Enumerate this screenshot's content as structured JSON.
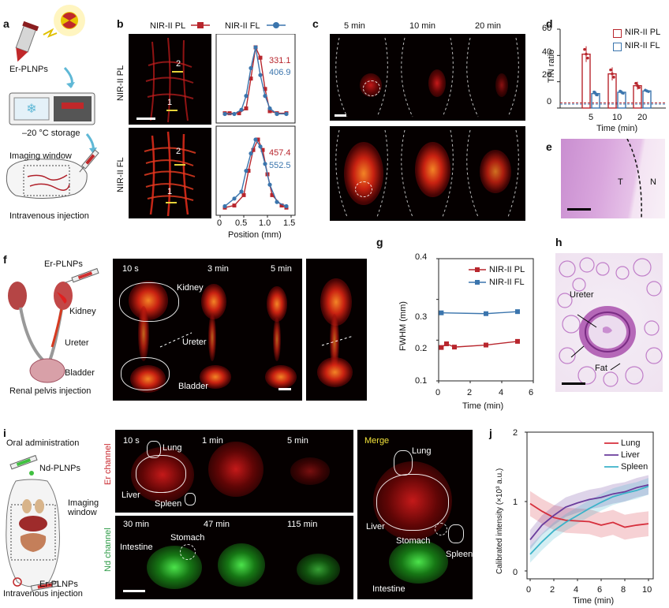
{
  "panels": {
    "a": {
      "label": "a",
      "er_plnps": "Er-PLNPs",
      "storage": "–20 °C storage",
      "imaging_window": "Imaging window",
      "injection": "Intravenous injection"
    },
    "b": {
      "label": "b",
      "legend_pl": "NIR-II PL",
      "legend_fl": "NIR-II FL",
      "row_pl": "NIR-II PL",
      "row_fl": "NIR-II FL",
      "marker1": "1",
      "marker2": "2",
      "marker1b": "1",
      "marker2b": "2",
      "val_pl_red": "331.1",
      "val_pl_blue": "406.9",
      "val_fl_red": "457.4",
      "val_fl_blue": "552.5",
      "xlabel": "Position (mm)",
      "xticks": [
        "0",
        "0.5",
        "1.0",
        "1.5"
      ]
    },
    "c": {
      "label": "c",
      "times": [
        "5 min",
        "10 min",
        "20 min"
      ]
    },
    "d": {
      "label": "d",
      "legend_pl": "NIR-II PL",
      "legend_fl": "NIR-II FL",
      "ylabel": "T/N ratio",
      "xlabel": "Time (min)",
      "yticks": [
        "0",
        "20",
        "40",
        "60"
      ],
      "xticks": [
        "5",
        "10",
        "20"
      ]
    },
    "e": {
      "label": "e",
      "t": "T",
      "n": "N"
    },
    "f": {
      "label": "f",
      "er_plnps": "Er-PLNPs",
      "kidney": "Kidney",
      "ureter": "Ureter",
      "bladder": "Bladder",
      "injection": "Renal pelvis injection",
      "times": [
        "10 s",
        "3 min",
        "5 min"
      ],
      "img_kidney": "Kidney",
      "img_ureter": "Ureter",
      "img_bladder": "Bladder"
    },
    "g": {
      "label": "g",
      "legend_pl": "NIR-II PL",
      "legend_fl": "NIR-II FL",
      "ylabel": "FWHM (mm)",
      "xlabel": "Time (min)",
      "yticks": [
        "0.1",
        "0.2",
        "0.3",
        "0.4"
      ],
      "xticks": [
        "0",
        "2",
        "4",
        "6"
      ]
    },
    "h": {
      "label": "h",
      "ureter": "Ureter",
      "fat": "Fat"
    },
    "i": {
      "label": "i",
      "oral": "Oral administration",
      "nd_plnps": "Nd-PLNPs",
      "imaging_window": "Imaging\nwindow",
      "er_plnps": "Er-PLNPs",
      "injection": "Intravenous injection",
      "er_channel": "Er channel",
      "nd_channel": "Nd channel",
      "er_times": [
        "10 s",
        "1 min",
        "5 min"
      ],
      "nd_times": [
        "30 min",
        "47 min",
        "115 min"
      ],
      "lung": "Lung",
      "liver": "Liver",
      "spleen": "Spleen",
      "stomach": "Stomach",
      "intestine": "Intestine",
      "merge": "Merge",
      "m_lung": "Lung",
      "m_liver": "Liver",
      "m_stomach": "Stomach",
      "m_spleen": "Spleen",
      "m_intestine": "Intestine"
    },
    "j": {
      "label": "j",
      "legend": [
        "Lung",
        "Liver",
        "Spleen"
      ],
      "ylabel": "Calibrated intensity (×10³ a.u.)",
      "xlabel": "Time (min)",
      "yticks": [
        "0",
        "1",
        "2"
      ],
      "xticks": [
        "0",
        "2",
        "4",
        "6",
        "8",
        "10"
      ]
    }
  },
  "colors": {
    "pl": "#b8262d",
    "fl": "#3b75ad",
    "lung": "#d62f3c",
    "liver": "#6a3c9c",
    "spleen": "#3cb3c9"
  },
  "chart_data": [
    {
      "panel": "b-top",
      "type": "scatter",
      "xlabel": "Position (mm)",
      "xlim": [
        0,
        1.5
      ],
      "series": [
        {
          "name": "NIR-II PL",
          "x": [
            0.1,
            0.2,
            0.4,
            0.55,
            0.65,
            0.75,
            0.85,
            0.95,
            1.05,
            1.2,
            1.4
          ],
          "y": [
            0.05,
            0.05,
            0.05,
            0.12,
            0.55,
            1.0,
            0.85,
            0.4,
            0.08,
            0.05,
            0.05
          ]
        },
        {
          "name": "NIR-II FL",
          "x": [
            0.1,
            0.3,
            0.45,
            0.55,
            0.65,
            0.75,
            0.85,
            0.95,
            1.05,
            1.2,
            1.4
          ],
          "y": [
            0.04,
            0.04,
            0.1,
            0.3,
            0.7,
            1.0,
            0.6,
            0.3,
            0.12,
            0.04,
            0.04
          ]
        }
      ]
    },
    {
      "panel": "b-bottom",
      "type": "scatter",
      "xlabel": "Position (mm)",
      "xlim": [
        0,
        1.5
      ],
      "series": [
        {
          "name": "NIR-II PL",
          "x": [
            0.1,
            0.3,
            0.5,
            0.6,
            0.7,
            0.8,
            0.9,
            1.0,
            1.1,
            1.3,
            1.4
          ],
          "y": [
            0.02,
            0.05,
            0.2,
            0.55,
            0.85,
            1.0,
            0.85,
            0.5,
            0.2,
            0.05,
            0.02
          ]
        },
        {
          "name": "NIR-II FL",
          "x": [
            0.1,
            0.3,
            0.45,
            0.55,
            0.65,
            0.75,
            0.85,
            0.95,
            1.05,
            1.2,
            1.4
          ],
          "y": [
            0.04,
            0.15,
            0.25,
            0.55,
            0.8,
            1.0,
            0.9,
            0.65,
            0.35,
            0.1,
            0.04
          ]
        }
      ]
    },
    {
      "panel": "d",
      "type": "bar",
      "categories": [
        "5",
        "10",
        "20"
      ],
      "xlabel": "Time (min)",
      "ylabel": "T/N ratio",
      "ylim": [
        0,
        60
      ],
      "series": [
        {
          "name": "NIR-II PL",
          "values": [
            41,
            26,
            17
          ],
          "errors": [
            6,
            5,
            3
          ]
        },
        {
          "name": "NIR-II FL",
          "values": [
            11,
            12,
            13
          ],
          "errors": [
            2,
            1.5,
            1
          ]
        }
      ],
      "reference_lines": [
        4,
        3
      ]
    },
    {
      "panel": "g",
      "type": "line",
      "xlabel": "Time (min)",
      "ylabel": "FWHM (mm)",
      "ylim": [
        0.1,
        0.4
      ],
      "xlim": [
        0,
        6
      ],
      "series": [
        {
          "name": "NIR-II PL",
          "x": [
            0.17,
            0.5,
            1,
            3,
            5
          ],
          "y": [
            0.182,
            0.191,
            0.183,
            0.188,
            0.197
          ]
        },
        {
          "name": "NIR-II FL",
          "x": [
            0.17,
            3,
            5
          ],
          "y": [
            0.267,
            0.265,
            0.27
          ]
        }
      ]
    },
    {
      "panel": "j",
      "type": "line",
      "xlabel": "Time (min)",
      "ylabel": "Calibrated intensity (×10³ a.u.)",
      "ylim": [
        0,
        2
      ],
      "xlim": [
        0,
        10
      ],
      "series": [
        {
          "name": "Lung",
          "x": [
            0,
            1,
            2,
            3,
            4,
            5,
            6,
            7,
            8,
            9,
            10
          ],
          "y": [
            0.97,
            0.86,
            0.77,
            0.73,
            0.72,
            0.71,
            0.66,
            0.7,
            0.63,
            0.66,
            0.68
          ],
          "band": 0.18
        },
        {
          "name": "Liver",
          "x": [
            0,
            1,
            2,
            3,
            4,
            5,
            6,
            7,
            8,
            9,
            10
          ],
          "y": [
            0.45,
            0.66,
            0.8,
            0.92,
            0.98,
            1.03,
            1.06,
            1.11,
            1.14,
            1.2,
            1.24
          ],
          "band": 0.14
        },
        {
          "name": "Spleen",
          "x": [
            0,
            1,
            2,
            3,
            4,
            5,
            6,
            7,
            8,
            9,
            10
          ],
          "y": [
            0.24,
            0.42,
            0.58,
            0.7,
            0.8,
            0.9,
            0.99,
            1.07,
            1.12,
            1.16,
            1.22
          ],
          "band": 0.12
        }
      ]
    }
  ]
}
